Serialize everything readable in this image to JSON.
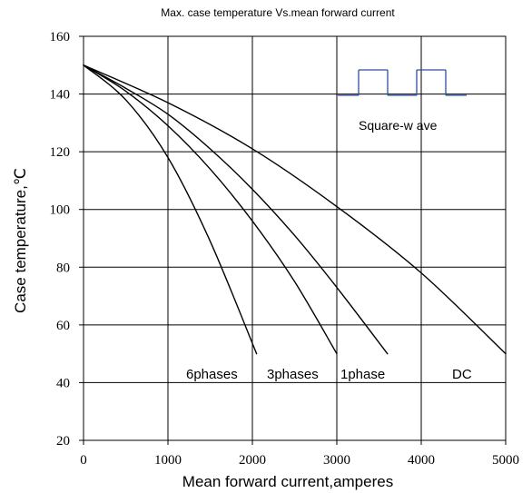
{
  "chart_data": {
    "type": "line",
    "title": "Max. case temperature  Vs.mean  forward current",
    "xlabel": "Mean forward  current,amperes",
    "ylabel": "Case temperature,℃",
    "xlim": [
      0,
      5000
    ],
    "ylim": [
      20,
      160
    ],
    "x_ticks": [
      0,
      1000,
      2000,
      3000,
      4000,
      5000
    ],
    "y_ticks": [
      20,
      40,
      60,
      80,
      100,
      120,
      140,
      160
    ],
    "x_tick_labels": [
      "0",
      "1000",
      "2000",
      "3000",
      "4000",
      "5000"
    ],
    "y_tick_labels": [
      "20",
      "40",
      "60",
      "80",
      "100",
      "120",
      "140",
      "160"
    ],
    "grid": true,
    "series": [
      {
        "name": "6phases",
        "x": [
          0,
          500,
          1000,
          1500,
          2050
        ],
        "y": [
          150,
          138,
          118,
          89,
          50
        ]
      },
      {
        "name": "3phases",
        "x": [
          0,
          500,
          1000,
          1500,
          2000,
          2500,
          3000
        ],
        "y": [
          150,
          141,
          129,
          114,
          96,
          75,
          50
        ]
      },
      {
        "name": "1phase",
        "x": [
          0,
          500,
          1000,
          1500,
          2000,
          2500,
          3000,
          3600
        ],
        "y": [
          150,
          142,
          133,
          121,
          107,
          91,
          73,
          50
        ]
      },
      {
        "name": "DC",
        "x": [
          0,
          1000,
          2000,
          3000,
          4000,
          5000
        ],
        "y": [
          150,
          137,
          121,
          101,
          78,
          50
        ]
      }
    ],
    "legend": {
      "labels": [
        "6phases",
        "3phases",
        "1phase",
        "DC"
      ],
      "placement": "bottom-inside"
    },
    "annotation": {
      "text": "Square-w ave",
      "symbol": "square-wave"
    }
  },
  "colors": {
    "line": "#000000",
    "grid": "#000000",
    "wave": "#2f4fa3",
    "background": "#ffffff"
  }
}
